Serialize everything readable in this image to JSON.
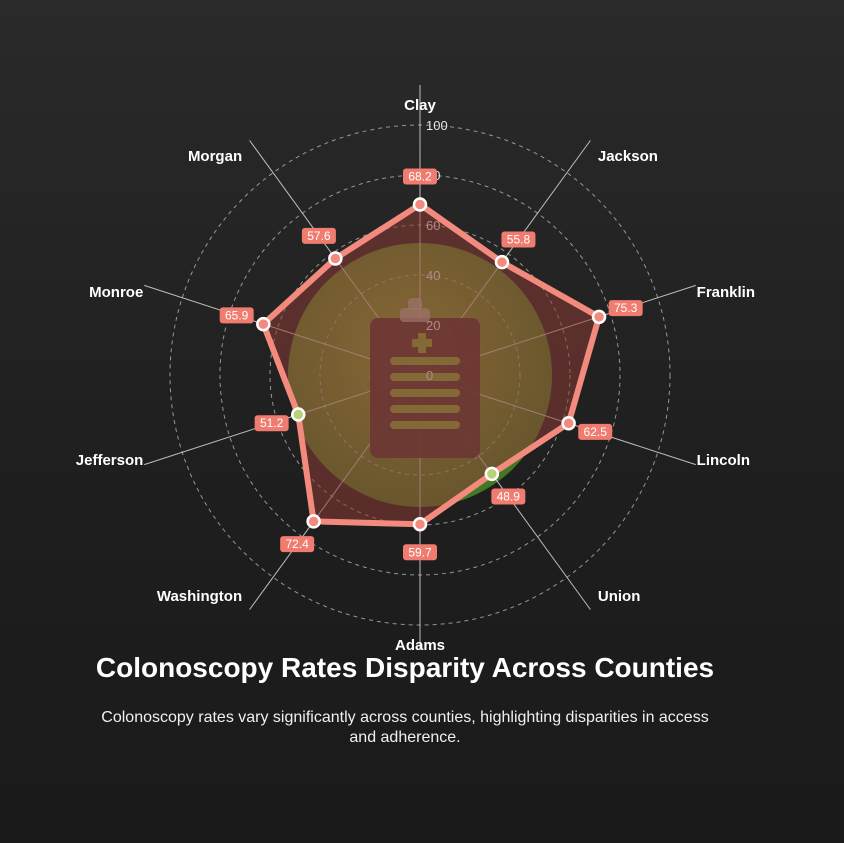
{
  "chart_data": {
    "type": "radar",
    "title": "Colonoscopy Rates Disparity Across Counties",
    "subtitle": "Colonoscopy rates vary significantly across counties, highlighting disparities in access and adherence.",
    "categories": [
      "Clay",
      "Jackson",
      "Franklin",
      "Lincoln",
      "Union",
      "Adams",
      "Washington",
      "Jefferson",
      "Monroe",
      "Morgan"
    ],
    "series": [
      {
        "values": [
          68.2,
          55.8,
          75.3,
          62.5,
          48.9,
          59.7,
          72.4,
          51.2,
          65.9,
          57.6
        ]
      }
    ],
    "rlim": [
      0,
      100
    ],
    "ticks": [
      0,
      20,
      40,
      60,
      80,
      100
    ],
    "grid": true,
    "colors": {
      "line": "#f28b7d",
      "fill": "#8a3a34",
      "label_bg": "#f07b6f",
      "circle_fill": "#6f9e2e",
      "highlight": "#b8d27a"
    },
    "background_icon": "clipboard-medical-icon"
  }
}
